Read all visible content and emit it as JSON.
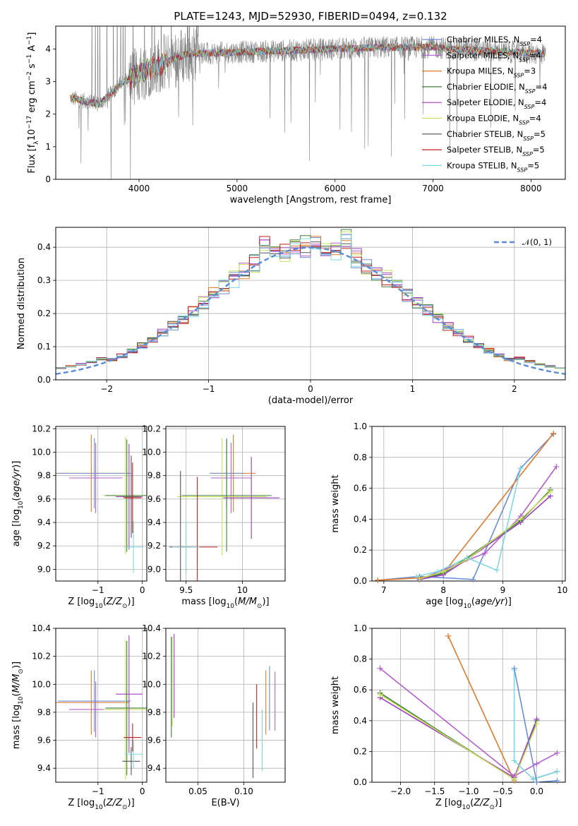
{
  "figure_title": "PLATE=1243, MJD=52930, FIBERID=0494, z=0.132",
  "colors": {
    "Chabrier MILES": "#6a8fd8",
    "Salpeter MILES": "#b35fd0",
    "Kroupa MILES": "#e07b2a",
    "Chabrier ELODIE": "#3d7f3d",
    "Salpeter ELODIE": "#9b3fbf",
    "Kroupa ELODIE": "#c8e05a",
    "Chabrier STELIB": "#555555",
    "Salpeter STELIB": "#c02020",
    "Kroupa STELIB": "#80d8e0",
    "spectrum": "#808080",
    "normal": "#5b8bd6"
  },
  "chart_data": [
    {
      "id": "spectrum",
      "type": "line",
      "xlabel": "wavelength [Angstrom, rest frame]",
      "ylabel": "Flux [f_λ 10^-17 erg cm^-2 s^-1 A^-1]",
      "xlim": [
        3150,
        8350
      ],
      "ylim": [
        0,
        4.7
      ],
      "xticks": [
        4000,
        5000,
        6000,
        7000,
        8000
      ],
      "yticks": [
        0,
        1,
        2,
        3,
        4
      ],
      "legend_position": "top-right",
      "legend": [
        {
          "label": "Chabrier MILES",
          "sub": "SSP",
          "value": "=4"
        },
        {
          "label": "Salpeter MILES",
          "sub": "SSP",
          "value": "=4"
        },
        {
          "label": "Kroupa MILES",
          "sub": "SSP",
          "value": "=3"
        },
        {
          "label": "Chabrier ELODIE",
          "sub": "SSP",
          "value": "=4"
        },
        {
          "label": "Salpeter ELODIE",
          "sub": "SSP",
          "value": "=4"
        },
        {
          "label": "Kroupa ELODIE",
          "sub": "SSP",
          "value": "=4"
        },
        {
          "label": "Chabrier STELIB",
          "sub": "SSP",
          "value": "=5"
        },
        {
          "label": "Salpeter STELIB",
          "sub": "SSP",
          "value": "=5"
        },
        {
          "label": "Kroupa STELIB",
          "sub": "SSP",
          "value": "=5"
        }
      ],
      "data_range": [
        3300,
        8150
      ],
      "model_trend": [
        [
          3300,
          2.5
        ],
        [
          3600,
          2.3
        ],
        [
          3800,
          2.9
        ],
        [
          4100,
          3.4
        ],
        [
          4500,
          3.85
        ],
        [
          5000,
          3.9
        ],
        [
          5500,
          3.95
        ],
        [
          6000,
          4.0
        ],
        [
          6500,
          4.05
        ],
        [
          7000,
          4.05
        ],
        [
          7500,
          3.95
        ],
        [
          8150,
          3.85
        ]
      ],
      "ymarks": "yaxis"
    },
    {
      "id": "residuals",
      "type": "histogram",
      "xlabel": "(data-model)/error",
      "ylabel": "Normed distribution",
      "xlim": [
        -2.5,
        2.5
      ],
      "ylim": [
        0,
        0.46
      ],
      "xticks": [
        -2,
        -1,
        0,
        1,
        2
      ],
      "yticks": [
        0.0,
        0.1,
        0.2,
        0.3,
        0.4
      ],
      "grid": true,
      "legend_position": "top-right",
      "normal_label": "𝒩(0, 1)",
      "bin_width": 0.1,
      "bins_start": -2.5,
      "bins_count": 50
    },
    {
      "id": "age-vs-Z",
      "type": "errorbar",
      "xlabel": "Z [log10(Z/Z⊙)]",
      "ylabel": "age [log10(age/yr)]",
      "xlim": [
        -1.95,
        0.1
      ],
      "ylim": [
        8.9,
        10.22
      ],
      "xticks": [
        -1,
        0
      ],
      "yticks": [
        9.0,
        9.2,
        9.4,
        9.6,
        9.8,
        10.0,
        10.2
      ],
      "grid": true,
      "points": [
        {
          "model": "Kroupa MILES",
          "x": -1.15,
          "y": 9.82,
          "xerr": 0.85,
          "yerr": 0.33
        },
        {
          "model": "Chabrier MILES",
          "x": -1.08,
          "y": 9.82,
          "xerr": 0.82,
          "yerr": 0.3
        },
        {
          "model": "Salpeter MILES",
          "x": -1.05,
          "y": 9.78,
          "xerr": 0.6,
          "yerr": 0.3
        },
        {
          "model": "Kroupa ELODIE",
          "x": -0.38,
          "y": 9.63,
          "xerr": 0.5,
          "yerr": 0.5
        },
        {
          "model": "Chabrier ELODIE",
          "x": -0.35,
          "y": 9.63,
          "xerr": 0.48,
          "yerr": 0.48
        },
        {
          "model": "Salpeter ELODIE",
          "x": -0.3,
          "y": 9.62,
          "xerr": 0.3,
          "yerr": 0.45
        },
        {
          "model": "Chabrier STELIB",
          "x": -0.25,
          "y": 9.62,
          "xerr": 0.2,
          "yerr": 0.35
        },
        {
          "model": "Salpeter STELIB",
          "x": -0.22,
          "y": 9.61,
          "xerr": 0.2,
          "yerr": 0.3
        },
        {
          "model": "Kroupa STELIB",
          "x": -0.2,
          "y": 9.19,
          "xerr": 0.22,
          "yerr": 0.22
        }
      ]
    },
    {
      "id": "age-vs-mass",
      "type": "errorbar",
      "xlabel": "mass [log10(M/M⊙)]",
      "xlim": [
        9.32,
        10.38
      ],
      "ylim": [
        8.9,
        10.22
      ],
      "xticks": [
        9.5,
        10.0
      ],
      "yticks": [
        9.0,
        9.2,
        9.4,
        9.6,
        9.8,
        10.0,
        10.2
      ],
      "grid": true,
      "points": [
        {
          "model": "Kroupa MILES",
          "x": 9.92,
          "y": 9.82,
          "xerr": 0.2,
          "yerr": 0.33
        },
        {
          "model": "Salpeter MILES",
          "x": 9.9,
          "y": 9.78,
          "xerr": 0.18,
          "yerr": 0.3
        },
        {
          "model": "Chabrier MILES",
          "x": 9.86,
          "y": 9.82,
          "xerr": 0.15,
          "yerr": 0.3
        },
        {
          "model": "Kroupa ELODIE",
          "x": 9.82,
          "y": 9.62,
          "xerr": 0.4,
          "yerr": 0.5
        },
        {
          "model": "Chabrier ELODIE",
          "x": 9.86,
          "y": 9.63,
          "xerr": 0.4,
          "yerr": 0.48
        },
        {
          "model": "Salpeter ELODIE",
          "x": 10.08,
          "y": 9.61,
          "xerr": 0.25,
          "yerr": 0.35
        },
        {
          "model": "Chabrier STELIB",
          "x": 9.45,
          "y": 9.19,
          "xerr": 0.1,
          "yerr": 0.65
        },
        {
          "model": "Salpeter STELIB",
          "x": 9.6,
          "y": 9.19,
          "xerr": 0.18,
          "yerr": 0.6
        },
        {
          "model": "Kroupa STELIB",
          "x": 9.5,
          "y": 9.19,
          "xerr": 0.12,
          "yerr": 0.22
        }
      ]
    },
    {
      "id": "weight-vs-age",
      "type": "line",
      "xlabel": "age [log10(age/yr)]",
      "ylabel": "mass weight",
      "xlim": [
        6.8,
        10.05
      ],
      "ylim": [
        0,
        1.0
      ],
      "xticks": [
        7,
        8,
        9,
        10
      ],
      "yticks": [
        0.0,
        0.2,
        0.4,
        0.6,
        0.8,
        1.0
      ],
      "grid": true,
      "series": [
        {
          "model": "Chabrier MILES",
          "x": [
            6.9,
            7.6,
            8.5,
            9.3,
            9.85
          ],
          "y": [
            0.005,
            0.03,
            0.01,
            0.73,
            0.95
          ]
        },
        {
          "model": "Kroupa MILES",
          "x": [
            6.9,
            7.6,
            8.0,
            9.85
          ],
          "y": [
            0.005,
            0.02,
            0.05,
            0.955
          ]
        },
        {
          "model": "Salpeter MILES",
          "x": [
            7.6,
            8.7,
            9.3,
            9.9
          ],
          "y": [
            0.01,
            0.18,
            0.42,
            0.74
          ]
        },
        {
          "model": "Chabrier ELODIE",
          "x": [
            7.6,
            8.0,
            8.4,
            9.3,
            9.8
          ],
          "y": [
            0.01,
            0.05,
            0.15,
            0.39,
            0.59
          ]
        },
        {
          "model": "Salpeter ELODIE",
          "x": [
            7.6,
            8.0,
            8.4,
            9.3,
            9.8
          ],
          "y": [
            0.01,
            0.04,
            0.14,
            0.38,
            0.55
          ]
        },
        {
          "model": "Kroupa ELODIE",
          "x": [
            7.6,
            8.0,
            8.4,
            9.3,
            9.8
          ],
          "y": [
            0.015,
            0.06,
            0.14,
            0.4,
            0.58
          ]
        },
        {
          "model": "Kroupa STELIB",
          "x": [
            7.55,
            7.9,
            8.4,
            8.9,
            9.3
          ],
          "y": [
            0.03,
            0.06,
            0.15,
            0.07,
            0.73
          ]
        }
      ]
    },
    {
      "id": "mass-vs-Z",
      "type": "errorbar",
      "xlabel": "Z [log10(Z/Z⊙)]",
      "ylabel": "mass [log10(M/M⊙)]",
      "xlim": [
        -1.95,
        0.1
      ],
      "ylim": [
        9.3,
        10.4
      ],
      "xticks": [
        -1,
        0
      ],
      "yticks": [
        9.4,
        9.6,
        9.8,
        10.0,
        10.2,
        10.4
      ],
      "grid": true,
      "points": [
        {
          "model": "Kroupa MILES",
          "x": -1.15,
          "y": 9.87,
          "xerr": 0.85,
          "yerr": 0.23
        },
        {
          "model": "Chabrier MILES",
          "x": -1.08,
          "y": 9.88,
          "xerr": 0.82,
          "yerr": 0.22
        },
        {
          "model": "Salpeter MILES",
          "x": -1.05,
          "y": 9.82,
          "xerr": 0.6,
          "yerr": 0.2
        },
        {
          "model": "Kroupa ELODIE",
          "x": -0.38,
          "y": 9.82,
          "xerr": 0.5,
          "yerr": 0.5
        },
        {
          "model": "Chabrier ELODIE",
          "x": -0.35,
          "y": 9.83,
          "xerr": 0.48,
          "yerr": 0.48
        },
        {
          "model": "Salpeter ELODIE",
          "x": -0.3,
          "y": 9.93,
          "xerr": 0.3,
          "yerr": 0.42
        },
        {
          "model": "Chabrier STELIB",
          "x": -0.25,
          "y": 9.45,
          "xerr": 0.2,
          "yerr": 0.1
        },
        {
          "model": "Salpeter STELIB",
          "x": -0.22,
          "y": 9.62,
          "xerr": 0.2,
          "yerr": 0.1
        },
        {
          "model": "Kroupa STELIB",
          "x": -0.2,
          "y": 9.5,
          "xerr": 0.2,
          "yerr": 0.1
        }
      ]
    },
    {
      "id": "mass-vs-EBV",
      "type": "errorbar",
      "xlabel": "E(B-V)",
      "xlim": [
        0.015,
        0.145
      ],
      "ylim": [
        9.3,
        10.4
      ],
      "xticks": [
        0.05,
        0.1
      ],
      "xtick_labels": [
        "0.05",
        "0.10"
      ],
      "yticks": [
        9.4,
        9.6,
        9.8,
        10.0,
        10.2,
        10.4
      ],
      "grid": true,
      "points": [
        {
          "model": "Chabrier ELODIE",
          "x": 0.021,
          "y": 9.98,
          "xerr": 0,
          "yerr": 0.36
        },
        {
          "model": "Kroupa ELODIE",
          "x": 0.022,
          "y": 10.02,
          "xerr": 0,
          "yerr": 0.32
        },
        {
          "model": "Salpeter ELODIE",
          "x": 0.024,
          "y": 10.06,
          "xerr": 0,
          "yerr": 0.3
        },
        {
          "model": "Chabrier STELIB",
          "x": 0.11,
          "y": 9.6,
          "xerr": 0,
          "yerr": 0.27
        },
        {
          "model": "Salpeter STELIB",
          "x": 0.114,
          "y": 9.77,
          "xerr": 0,
          "yerr": 0.23
        },
        {
          "model": "Kroupa STELIB",
          "x": 0.12,
          "y": 9.6,
          "xerr": 0,
          "yerr": 0.22
        },
        {
          "model": "Kroupa MILES",
          "x": 0.124,
          "y": 9.87,
          "xerr": 0,
          "yerr": 0.23
        },
        {
          "model": "Chabrier MILES",
          "x": 0.128,
          "y": 9.9,
          "xerr": 0,
          "yerr": 0.23
        },
        {
          "model": "Salpeter MILES",
          "x": 0.134,
          "y": 9.88,
          "xerr": 0,
          "yerr": 0.21
        }
      ]
    },
    {
      "id": "weight-vs-Z",
      "type": "line",
      "xlabel": "Z [log10(Z/Z⊙)]",
      "ylabel": "mass weight",
      "xlim": [
        -2.42,
        0.42
      ],
      "ylim": [
        0,
        1.0
      ],
      "xticks": [
        -2.0,
        -1.5,
        -1.0,
        -0.5,
        0.0
      ],
      "xtick_labels": [
        "−2.0",
        "−1.5",
        "−1.0",
        "−0.5",
        "0.0"
      ],
      "yticks": [
        0.0,
        0.2,
        0.4,
        0.6,
        0.8,
        1.0
      ],
      "grid": true,
      "series": [
        {
          "model": "Kroupa MILES",
          "x": [
            -1.3,
            -0.33
          ],
          "y": [
            0.95,
            0.01
          ]
        },
        {
          "model": "Salpeter MILES",
          "x": [
            -2.3,
            -0.33,
            0.0,
            0.3
          ],
          "y": [
            0.74,
            0.04,
            0.12,
            0.19
          ]
        },
        {
          "model": "Chabrier ELODIE",
          "x": [
            -2.3,
            -0.33,
            0.0
          ],
          "y": [
            0.58,
            0.02,
            0.4
          ]
        },
        {
          "model": "Salpeter ELODIE",
          "x": [
            -2.3,
            -0.33,
            0.0
          ],
          "y": [
            0.55,
            0.03,
            0.41
          ]
        },
        {
          "model": "Kroupa ELODIE",
          "x": [
            -2.3,
            -0.33,
            0.0
          ],
          "y": [
            0.57,
            0.02,
            0.38
          ]
        },
        {
          "model": "Chabrier STELIB",
          "x": [
            -0.05,
            0.3
          ],
          "y": [
            0.02,
            0.07
          ]
        },
        {
          "model": "Kroupa STELIB",
          "x": [
            -0.33,
            -0.33,
            -0.05,
            0.3
          ],
          "y": [
            0.73,
            0.14,
            0.02,
            0.07
          ]
        },
        {
          "model": "Chabrier MILES",
          "x": [
            -0.33,
            0.0,
            0.3
          ],
          "y": [
            0.74,
            0.0,
            0.01
          ]
        }
      ]
    }
  ]
}
